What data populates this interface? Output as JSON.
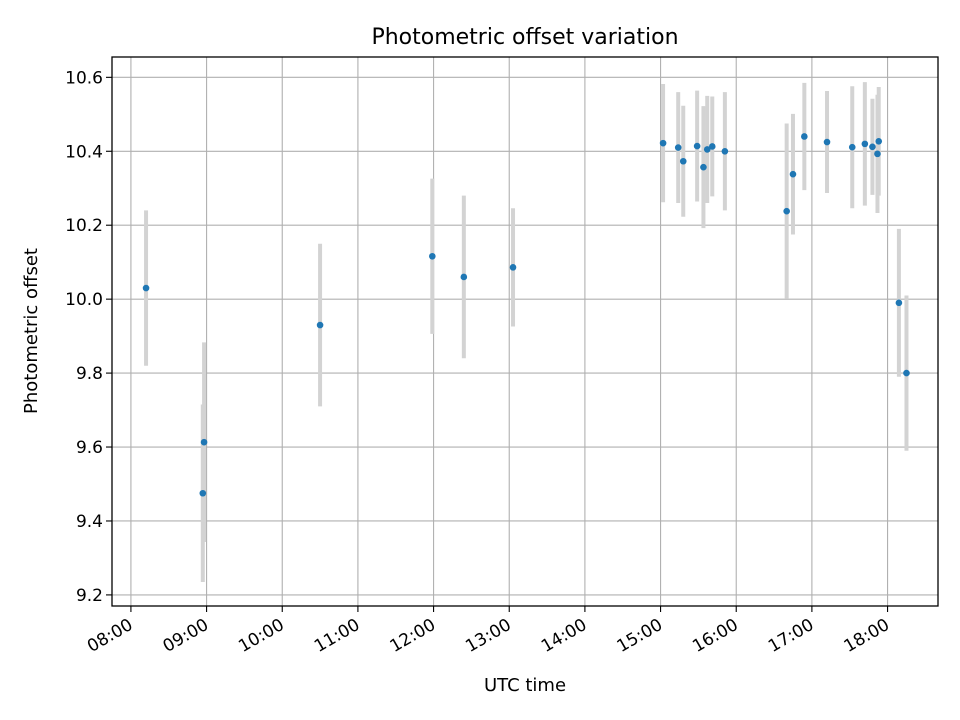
{
  "chart_data": {
    "type": "scatter",
    "title": "Photometric offset variation",
    "xlabel": "UTC time",
    "ylabel": "Photometric offset",
    "xlim": [
      "07:45",
      "18:40"
    ],
    "ylim": [
      9.17,
      10.655
    ],
    "x_ticks": [
      "08:00",
      "09:00",
      "10:00",
      "11:00",
      "12:00",
      "13:00",
      "14:00",
      "15:00",
      "16:00",
      "17:00",
      "18:00"
    ],
    "y_ticks": [
      9.2,
      9.4,
      9.6,
      9.8,
      10.0,
      10.2,
      10.4,
      10.6
    ],
    "y_tick_labels": [
      "9.2",
      "9.4",
      "9.6",
      "9.8",
      "10.0",
      "10.2",
      "10.4",
      "10.6"
    ],
    "grid": true,
    "colors": {
      "point": "#1f77b4",
      "errorbar": "#d3d3d3",
      "grid": "#b0b0b0"
    },
    "points": [
      {
        "time": "08:12",
        "value": 10.03,
        "err": 0.21
      },
      {
        "time": "08:57",
        "value": 9.475,
        "err": 0.24
      },
      {
        "time": "08:58",
        "value": 9.613,
        "err": 0.27
      },
      {
        "time": "10:30",
        "value": 9.93,
        "err": 0.22
      },
      {
        "time": "11:59",
        "value": 10.116,
        "err": 0.21
      },
      {
        "time": "12:24",
        "value": 10.06,
        "err": 0.22
      },
      {
        "time": "13:03",
        "value": 10.086,
        "err": 0.16
      },
      {
        "time": "15:02",
        "value": 10.422,
        "err": 0.16
      },
      {
        "time": "15:14",
        "value": 10.41,
        "err": 0.15
      },
      {
        "time": "15:18",
        "value": 10.373,
        "err": 0.15
      },
      {
        "time": "15:29",
        "value": 10.414,
        "err": 0.15
      },
      {
        "time": "15:34",
        "value": 10.357,
        "err": 0.165
      },
      {
        "time": "15:37",
        "value": 10.405,
        "err": 0.145
      },
      {
        "time": "15:41",
        "value": 10.413,
        "err": 0.135
      },
      {
        "time": "15:51",
        "value": 10.4,
        "err": 0.16
      },
      {
        "time": "16:40",
        "value": 10.238,
        "err": 0.237
      },
      {
        "time": "16:45",
        "value": 10.338,
        "err": 0.163
      },
      {
        "time": "16:54",
        "value": 10.44,
        "err": 0.145
      },
      {
        "time": "17:12",
        "value": 10.425,
        "err": 0.138
      },
      {
        "time": "17:32",
        "value": 10.411,
        "err": 0.165
      },
      {
        "time": "17:42",
        "value": 10.42,
        "err": 0.167
      },
      {
        "time": "17:48",
        "value": 10.412,
        "err": 0.13
      },
      {
        "time": "17:52",
        "value": 10.393,
        "err": 0.16
      },
      {
        "time": "17:53",
        "value": 10.427,
        "err": 0.147
      },
      {
        "time": "18:09",
        "value": 9.99,
        "err": 0.2
      },
      {
        "time": "18:15",
        "value": 9.8,
        "err": 0.21
      }
    ]
  }
}
